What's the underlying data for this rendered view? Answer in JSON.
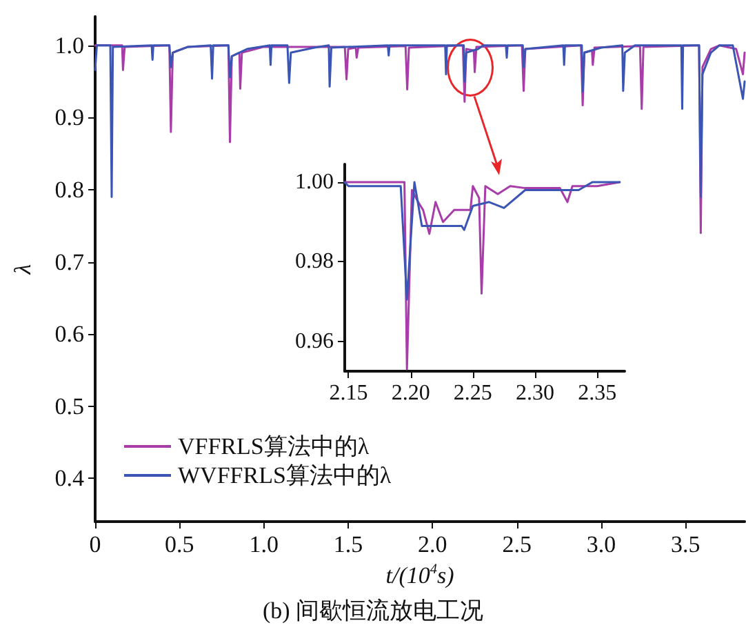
{
  "chart_data": [
    {
      "type": "line",
      "title": "(b) 间歇恒流放电工况",
      "xlabel": "t/(10$^{4}$s)",
      "ylabel": "λ",
      "xlim": [
        0,
        3.85
      ],
      "xticks": [
        0,
        0.5,
        {
          "value": 1,
          "label": "1.0"
        },
        1.5,
        {
          "value": 2,
          "label": "2.0"
        },
        2.5,
        {
          "value": 3,
          "label": "3.0"
        },
        3.5
      ],
      "ylim": [
        0.34,
        1.04
      ],
      "yticks": [
        0.4,
        0.5,
        0.6,
        0.7,
        0.8,
        0.9,
        {
          "value": 1,
          "label": "1.0"
        }
      ],
      "legend": "bottom left",
      "grid": false,
      "marker": "none",
      "line_style": "solid",
      "series": [
        {
          "name": "VFFRLS算法中的λ",
          "color": "#a83ca8",
          "x": [
            0,
            0.16,
            0.165,
            0.175,
            0.44,
            0.449,
            0.46,
            0.55,
            0.79,
            0.799,
            0.81,
            0.855,
            0.86,
            0.87,
            1.0,
            1.48,
            1.49,
            1.5,
            1.545,
            1.55,
            1.56,
            1.84,
            1.85,
            1.86,
            2.18,
            2.19,
            2.2,
            2.245,
            2.25,
            2.26,
            2.53,
            2.54,
            2.55,
            2.88,
            2.89,
            2.9,
            2.945,
            2.95,
            2.96,
            3.23,
            3.24,
            3.25,
            3.58,
            3.59,
            3.6,
            3.65,
            3.7,
            3.8,
            3.84,
            3.85
          ],
          "values": [
            1.0,
            1.0,
            0.966,
            0.998,
            1.0,
            0.88,
            0.99,
            0.998,
            1.0,
            0.866,
            0.985,
            0.99,
            0.94,
            0.99,
            0.998,
            0.998,
            0.953,
            0.995,
            0.997,
            0.983,
            0.997,
            0.999,
            0.939,
            0.997,
            1.0,
            0.922,
            0.995,
            0.993,
            0.963,
            0.998,
            1.0,
            0.937,
            0.995,
            1.0,
            0.917,
            0.99,
            0.993,
            0.973,
            0.997,
            0.999,
            0.912,
            0.998,
            1.0,
            0.74,
            0.97,
            0.995,
            1.0,
            0.995,
            0.96,
            0.99
          ]
        },
        {
          "name": "WVFFRLS算法中的λ",
          "color": "#3a55b4",
          "x": [
            0,
            0.01,
            0.09,
            0.098,
            0.105,
            0.335,
            0.34,
            0.345,
            0.44,
            0.449,
            0.46,
            0.55,
            0.685,
            0.693,
            0.7,
            0.79,
            0.799,
            0.81,
            0.9,
            1.035,
            1.04,
            1.045,
            1.14,
            1.15,
            1.16,
            1.3,
            1.385,
            1.39,
            1.4,
            1.735,
            1.74,
            1.745,
            2.075,
            2.08,
            2.085,
            2.185,
            2.19,
            2.2,
            2.27,
            2.3,
            2.435,
            2.44,
            2.445,
            2.535,
            2.54,
            2.55,
            2.775,
            2.78,
            2.785,
            2.885,
            2.89,
            2.9,
            3.0,
            3.125,
            3.13,
            3.14,
            3.2,
            3.475,
            3.48,
            3.485,
            3.58,
            3.59,
            3.6,
            3.65,
            3.7,
            3.78,
            3.84,
            3.85
          ],
          "values": [
            0.966,
            1.0,
            1.0,
            0.79,
            0.998,
            1.0,
            0.98,
            1.0,
            1.0,
            0.97,
            0.99,
            0.998,
            1.0,
            0.954,
            1.0,
            1.0,
            0.956,
            0.985,
            0.995,
            1.0,
            0.973,
            1.0,
            1.0,
            0.948,
            0.99,
            0.997,
            1.0,
            0.943,
            0.997,
            1.0,
            0.986,
            1.0,
            1.0,
            0.96,
            1.0,
            1.0,
            0.95,
            0.99,
            0.995,
            1.0,
            1.0,
            0.983,
            1.0,
            1.0,
            0.97,
            0.995,
            1.0,
            0.973,
            1.0,
            1.0,
            0.936,
            0.99,
            0.997,
            1.0,
            0.937,
            0.99,
            1.0,
            1.0,
            0.912,
            1.0,
            1.0,
            0.79,
            0.96,
            0.99,
            1.0,
            1.0,
            0.926,
            0.95
          ]
        }
      ]
    },
    {
      "type": "line",
      "xlim": [
        2.147,
        2.372
      ],
      "xticks": [
        2.15,
        {
          "value": 2.2,
          "label": "2.20"
        },
        2.25,
        {
          "value": 2.3,
          "label": "2.30"
        },
        2.35
      ],
      "ylim": [
        0.9525,
        1.0045
      ],
      "yticks": [
        0.96,
        0.98,
        {
          "value": 1,
          "label": "1.00"
        }
      ],
      "legend": false,
      "grid": false,
      "marker": "none",
      "line_style": "solid",
      "series": [
        {
          "color": "#a83ca8",
          "x": [
            2.147,
            2.195,
            2.197,
            2.201,
            2.206,
            2.21,
            2.215,
            2.22,
            2.226,
            2.235,
            2.248,
            2.25,
            2.255,
            2.257,
            2.26,
            2.27,
            2.28,
            2.292,
            2.32,
            2.326,
            2.33,
            2.35,
            2.368
          ],
          "values": [
            1.0,
            1.0,
            0.953,
            0.998,
            0.995,
            0.993,
            0.987,
            0.995,
            0.99,
            0.993,
            0.993,
            0.999,
            0.996,
            0.972,
            0.999,
            0.997,
            0.999,
            0.9985,
            0.9985,
            0.995,
            0.999,
            0.999,
            1.0
          ]
        },
        {
          "color": "#3a55b4",
          "x": [
            2.147,
            2.15,
            2.192,
            2.197,
            2.203,
            2.209,
            2.226,
            2.241,
            2.243,
            2.25,
            2.263,
            2.275,
            2.292,
            2.335,
            2.346,
            2.368
          ],
          "values": [
            1.0,
            0.999,
            0.999,
            0.9705,
            1.0,
            0.989,
            0.989,
            0.989,
            0.988,
            0.994,
            0.995,
            0.9935,
            0.998,
            0.998,
            1.0,
            1.0
          ]
        }
      ]
    }
  ]
}
